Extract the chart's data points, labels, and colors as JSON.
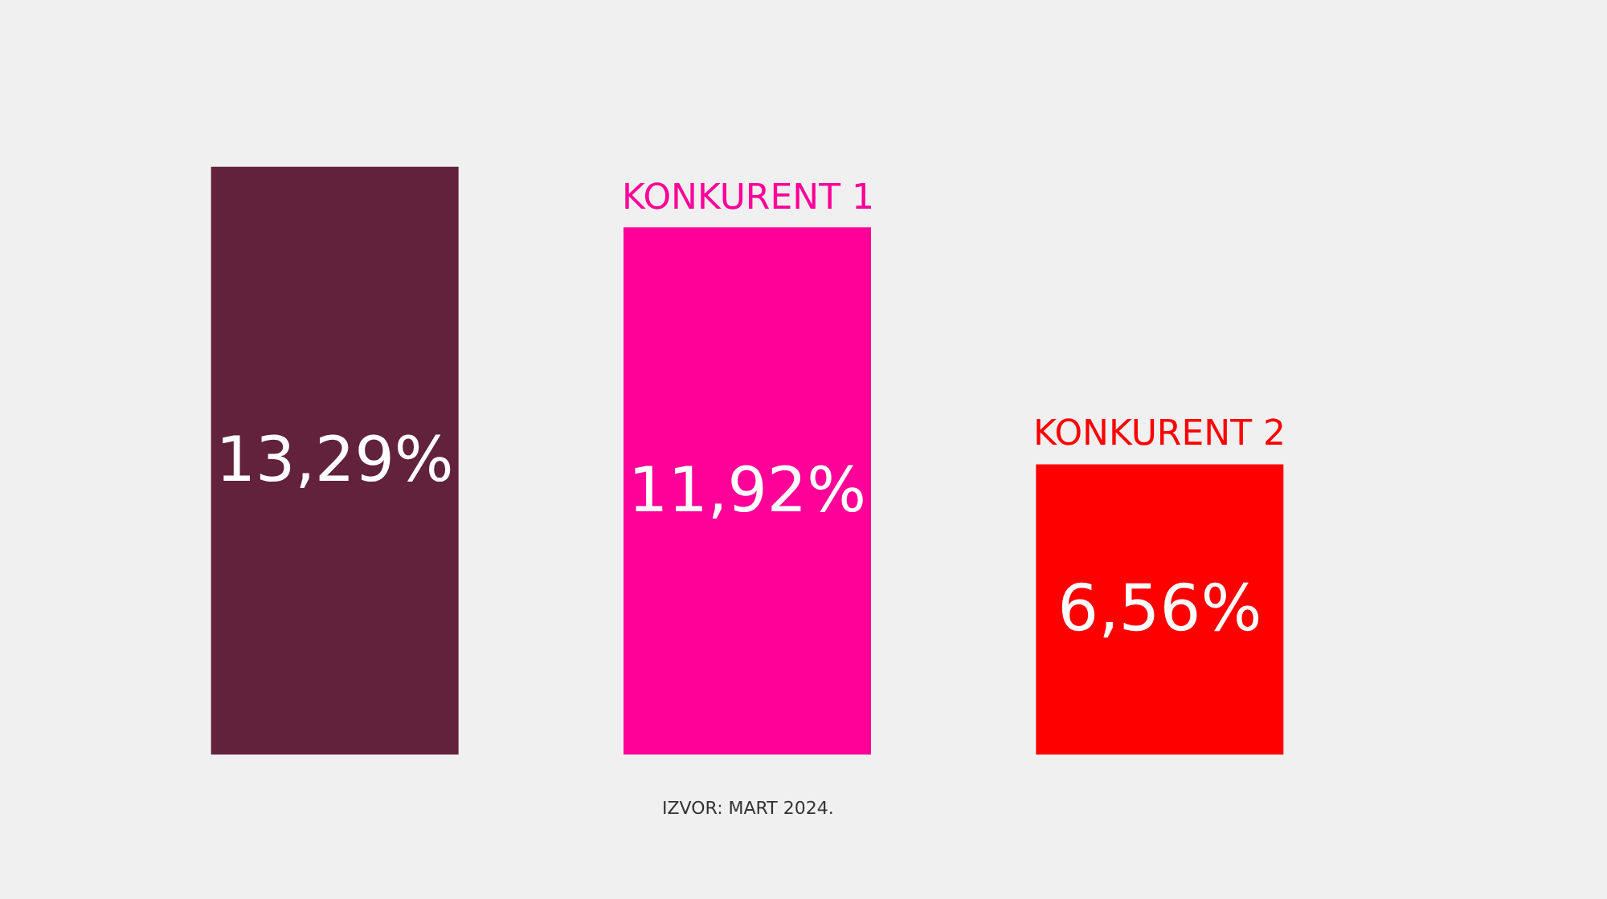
{
  "chart_data": {
    "type": "bar",
    "categories": [
      null,
      "KONKURENT 1",
      "KONKURENT 2"
    ],
    "values": [
      13.29,
      11.92,
      6.56
    ],
    "value_labels": [
      "13,29%",
      "11,92%",
      "6,56%"
    ],
    "colors": [
      "#62223c",
      "#ff0099",
      "#ff0000"
    ],
    "annotations": [
      "IZVOR: MART 2024."
    ]
  }
}
